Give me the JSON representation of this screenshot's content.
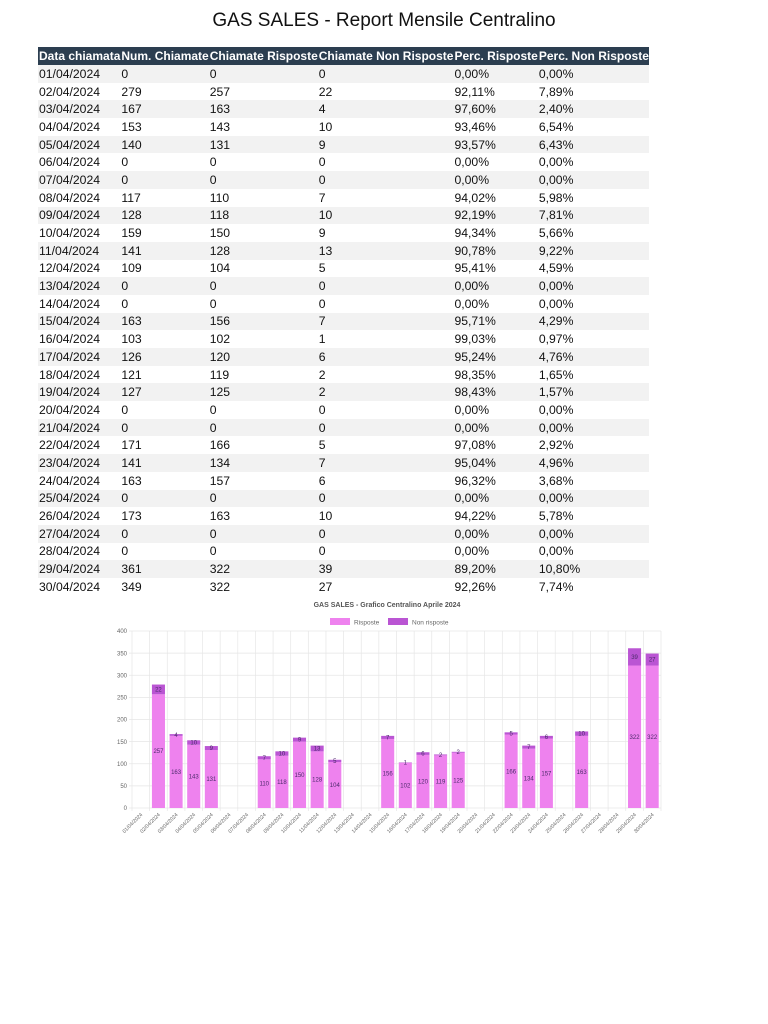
{
  "report": {
    "title": "GAS SALES - Report Mensile Centralino",
    "columns": [
      "Data chiamata",
      "Num. Chiamate",
      "Chiamate Risposte",
      "Chiamate Non Risposte",
      "Perc. Risposte",
      "Perc. Non Risposte"
    ],
    "rows": [
      [
        "01/04/2024",
        "0",
        "0",
        "0",
        "0,00%",
        "0,00%"
      ],
      [
        "02/04/2024",
        "279",
        "257",
        "22",
        "92,11%",
        "7,89%"
      ],
      [
        "03/04/2024",
        "167",
        "163",
        "4",
        "97,60%",
        "2,40%"
      ],
      [
        "04/04/2024",
        "153",
        "143",
        "10",
        "93,46%",
        "6,54%"
      ],
      [
        "05/04/2024",
        "140",
        "131",
        "9",
        "93,57%",
        "6,43%"
      ],
      [
        "06/04/2024",
        "0",
        "0",
        "0",
        "0,00%",
        "0,00%"
      ],
      [
        "07/04/2024",
        "0",
        "0",
        "0",
        "0,00%",
        "0,00%"
      ],
      [
        "08/04/2024",
        "117",
        "110",
        "7",
        "94,02%",
        "5,98%"
      ],
      [
        "09/04/2024",
        "128",
        "118",
        "10",
        "92,19%",
        "7,81%"
      ],
      [
        "10/04/2024",
        "159",
        "150",
        "9",
        "94,34%",
        "5,66%"
      ],
      [
        "11/04/2024",
        "141",
        "128",
        "13",
        "90,78%",
        "9,22%"
      ],
      [
        "12/04/2024",
        "109",
        "104",
        "5",
        "95,41%",
        "4,59%"
      ],
      [
        "13/04/2024",
        "0",
        "0",
        "0",
        "0,00%",
        "0,00%"
      ],
      [
        "14/04/2024",
        "0",
        "0",
        "0",
        "0,00%",
        "0,00%"
      ],
      [
        "15/04/2024",
        "163",
        "156",
        "7",
        "95,71%",
        "4,29%"
      ],
      [
        "16/04/2024",
        "103",
        "102",
        "1",
        "99,03%",
        "0,97%"
      ],
      [
        "17/04/2024",
        "126",
        "120",
        "6",
        "95,24%",
        "4,76%"
      ],
      [
        "18/04/2024",
        "121",
        "119",
        "2",
        "98,35%",
        "1,65%"
      ],
      [
        "19/04/2024",
        "127",
        "125",
        "2",
        "98,43%",
        "1,57%"
      ],
      [
        "20/04/2024",
        "0",
        "0",
        "0",
        "0,00%",
        "0,00%"
      ],
      [
        "21/04/2024",
        "0",
        "0",
        "0",
        "0,00%",
        "0,00%"
      ],
      [
        "22/04/2024",
        "171",
        "166",
        "5",
        "97,08%",
        "2,92%"
      ],
      [
        "23/04/2024",
        "141",
        "134",
        "7",
        "95,04%",
        "4,96%"
      ],
      [
        "24/04/2024",
        "163",
        "157",
        "6",
        "96,32%",
        "3,68%"
      ],
      [
        "25/04/2024",
        "0",
        "0",
        "0",
        "0,00%",
        "0,00%"
      ],
      [
        "26/04/2024",
        "173",
        "163",
        "10",
        "94,22%",
        "5,78%"
      ],
      [
        "27/04/2024",
        "0",
        "0",
        "0",
        "0,00%",
        "0,00%"
      ],
      [
        "28/04/2024",
        "0",
        "0",
        "0",
        "0,00%",
        "0,00%"
      ],
      [
        "29/04/2024",
        "361",
        "322",
        "39",
        "89,20%",
        "10,80%"
      ],
      [
        "30/04/2024",
        "349",
        "322",
        "27",
        "92,26%",
        "7,74%"
      ]
    ]
  },
  "colors": {
    "header_bg": "#2c3e50",
    "header_text": "#ffffff",
    "stripe": "#f2f2f2",
    "risposte": "#ee82ee",
    "non_risposte": "#ba55d3",
    "bar_label": "#4b2a6b"
  },
  "chart_data": {
    "type": "bar",
    "stacked": true,
    "title": "GAS SALES - Grafico Centralino Aprile 2024",
    "xlabel": "",
    "ylabel": "",
    "ylim": [
      0,
      400
    ],
    "yticks": [
      0,
      50,
      100,
      150,
      200,
      250,
      300,
      350,
      400
    ],
    "grid": true,
    "legend_position": "top",
    "categories": [
      "01/04/2024",
      "02/04/2024",
      "03/04/2024",
      "04/04/2024",
      "05/04/2024",
      "06/04/2024",
      "07/04/2024",
      "08/04/2024",
      "09/04/2024",
      "10/04/2024",
      "11/04/2024",
      "12/04/2024",
      "13/04/2024",
      "14/04/2024",
      "15/04/2024",
      "16/04/2024",
      "17/04/2024",
      "18/04/2024",
      "19/04/2024",
      "20/04/2024",
      "21/04/2024",
      "22/04/2024",
      "23/04/2024",
      "24/04/2024",
      "25/04/2024",
      "26/04/2024",
      "27/04/2024",
      "28/04/2024",
      "29/04/2024",
      "30/04/2024"
    ],
    "series": [
      {
        "name": "Risposte",
        "color": "#ee82ee",
        "values": [
          0,
          257,
          163,
          143,
          131,
          0,
          0,
          110,
          118,
          150,
          128,
          104,
          0,
          0,
          156,
          102,
          120,
          119,
          125,
          0,
          0,
          166,
          134,
          157,
          0,
          163,
          0,
          0,
          322,
          322
        ]
      },
      {
        "name": "Non risposte",
        "color": "#ba55d3",
        "values": [
          0,
          22,
          4,
          10,
          9,
          0,
          0,
          7,
          10,
          9,
          13,
          5,
          0,
          0,
          7,
          1,
          6,
          2,
          2,
          0,
          0,
          5,
          7,
          6,
          0,
          10,
          0,
          0,
          39,
          27
        ]
      }
    ]
  }
}
